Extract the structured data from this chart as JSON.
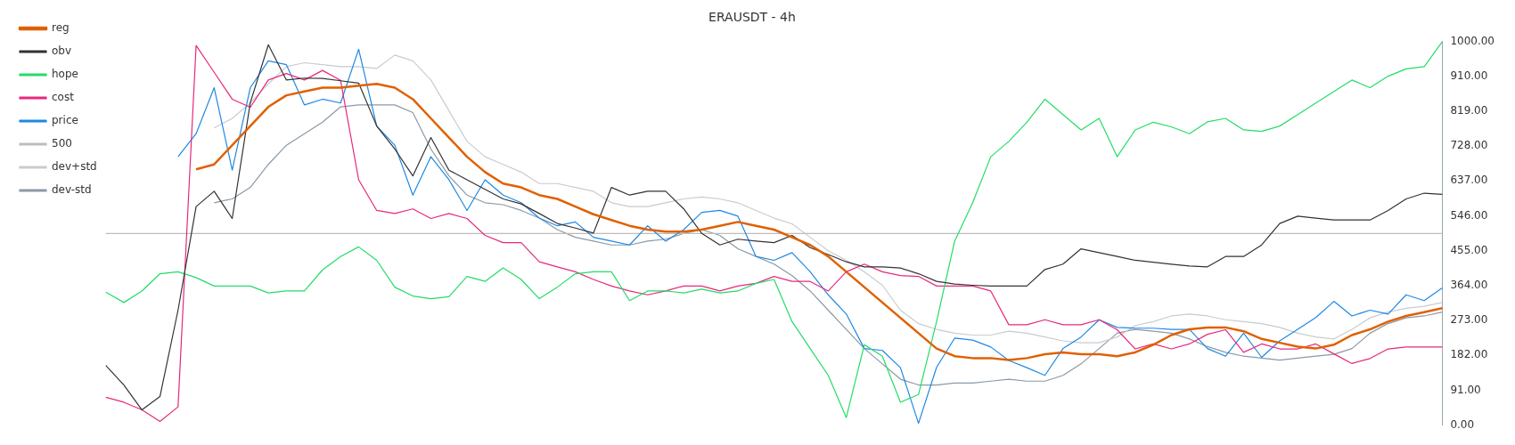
{
  "chart_data": {
    "type": "line",
    "title": "ERAUSDT - 4h",
    "categories": [
      null,
      null,
      null,
      null,
      null,
      null,
      null,
      null,
      null,
      null,
      null,
      null,
      null,
      null,
      null,
      null,
      null,
      null,
      null,
      null,
      null,
      null,
      null,
      null,
      null,
      null,
      null,
      null,
      null,
      null,
      null,
      null,
      null,
      null,
      null,
      null,
      null,
      null,
      null,
      null,
      null,
      null,
      null,
      null,
      null,
      null,
      null,
      null,
      null,
      null,
      null,
      null,
      null,
      null,
      null,
      null,
      null,
      null,
      null,
      null,
      null,
      null,
      null,
      null,
      null,
      null,
      null,
      null,
      null,
      null,
      null,
      null,
      null,
      null,
      null
    ],
    "series": [
      {
        "name": "obv",
        "color": "#333333",
        "values": [
          156,
          105,
          40,
          75,
          300,
          570,
          610,
          539,
          841,
          992,
          900,
          905,
          904,
          898,
          892,
          780,
          720,
          650,
          750,
          665,
          640,
          615,
          590,
          577,
          552,
          526,
          514,
          501,
          620,
          600,
          610,
          610,
          564,
          500,
          470,
          485,
          480,
          476,
          495,
          463,
          445,
          426,
          413,
          413,
          410,
          395,
          375,
          368,
          365,
          363,
          363,
          363,
          406,
          420,
          460,
          450,
          440,
          430,
          425,
          420,
          415,
          413,
          440,
          440,
          470,
          526,
          545,
          540,
          535,
          535,
          535,
          560,
          590,
          605,
          602
        ]
      },
      {
        "name": "hope",
        "color": "#22dd66",
        "values": [
          347,
          320,
          350,
          395,
          400,
          385,
          363,
          363,
          363,
          345,
          350,
          350,
          405,
          440,
          465,
          430,
          360,
          337,
          330,
          335,
          388,
          375,
          410,
          380,
          330,
          360,
          395,
          400,
          400,
          325,
          350,
          350,
          345,
          355,
          345,
          350,
          370,
          380,
          270,
          200,
          130,
          20,
          210,
          180,
          60,
          80,
          270,
          480,
          580,
          700,
          740,
          790,
          850,
          810,
          770,
          800,
          700,
          770,
          790,
          778,
          760,
          791,
          800,
          770,
          766,
          780,
          810,
          840,
          870,
          900,
          880,
          910,
          929,
          935,
          1000
        ]
      },
      {
        "name": "cost",
        "color": "#e8287c",
        "values": [
          73,
          60,
          40,
          10,
          48,
          990,
          920,
          850,
          829,
          900,
          917,
          900,
          925,
          899,
          640,
          560,
          552,
          564,
          539,
          552,
          539,
          495,
          476,
          476,
          426,
          413,
          400,
          380,
          363,
          350,
          340,
          350,
          363,
          363,
          350,
          363,
          370,
          388,
          375,
          375,
          350,
          400,
          420,
          400,
          390,
          388,
          363,
          363,
          363,
          350,
          262,
          262,
          275,
          262,
          262,
          275,
          249,
          199,
          212,
          199,
          212,
          237,
          249,
          190,
          212,
          199,
          199,
          212,
          186,
          161,
          174,
          199,
          204,
          204,
          204
        ]
      },
      {
        "name": "price",
        "color": "#1e88e5",
        "values": [
          null,
          null,
          null,
          null,
          700,
          760,
          880,
          665,
          880,
          950,
          940,
          835,
          850,
          840,
          980,
          780,
          730,
          600,
          700,
          640,
          560,
          640,
          600,
          580,
          540,
          520,
          530,
          490,
          480,
          470,
          520,
          480,
          510,
          555,
          560,
          545,
          440,
          430,
          450,
          400,
          340,
          290,
          200,
          195,
          150,
          5,
          151,
          227,
          222,
          204,
          169,
          150,
          130,
          200,
          230,
          275,
          255,
          253,
          253,
          250,
          250,
          200,
          180,
          240,
          177,
          220,
          250,
          281,
          323,
          285,
          300,
          290,
          340,
          325,
          358
        ]
      },
      {
        "name": "500",
        "color": "#bdbdbd",
        "values": [
          500,
          500,
          500,
          500,
          500,
          500,
          500,
          500,
          500,
          500,
          500,
          500,
          500,
          500,
          500,
          500,
          500,
          500,
          500,
          500,
          500,
          500,
          500,
          500,
          500,
          500,
          500,
          500,
          500,
          500,
          500,
          500,
          500,
          500,
          500,
          500,
          500,
          500,
          500,
          500,
          500,
          500,
          500,
          500,
          500,
          500,
          500,
          500,
          500,
          500,
          500,
          500,
          500,
          500,
          500,
          500,
          500,
          500,
          500,
          500,
          500,
          500,
          500,
          500,
          500,
          500,
          500,
          500,
          500,
          500,
          500,
          500,
          500,
          500,
          500
        ]
      },
      {
        "name": "reg",
        "color": "#e06000",
        "values": [
          null,
          null,
          null,
          null,
          null,
          667,
          680,
          730,
          780,
          830,
          860,
          870,
          880,
          880,
          885,
          890,
          880,
          850,
          800,
          750,
          700,
          660,
          630,
          620,
          600,
          590,
          570,
          550,
          535,
          520,
          510,
          505,
          505,
          510,
          520,
          530,
          520,
          510,
          490,
          470,
          440,
          400,
          360,
          320,
          280,
          240,
          200,
          180,
          175,
          175,
          170,
          175,
          185,
          190,
          185,
          185,
          180,
          190,
          210,
          235,
          250,
          255,
          255,
          245,
          225,
          215,
          205,
          200,
          210,
          235,
          250,
          270,
          285,
          295,
          305
        ]
      },
      {
        "name": "dev+std",
        "color": "#c8ccd0",
        "values": [
          null,
          null,
          null,
          null,
          null,
          null,
          775,
          800,
          840,
          890,
          935,
          945,
          940,
          935,
          935,
          930,
          965,
          950,
          900,
          820,
          740,
          700,
          680,
          660,
          630,
          630,
          620,
          610,
          580,
          570,
          570,
          580,
          590,
          595,
          590,
          580,
          560,
          540,
          525,
          490,
          455,
          430,
          400,
          365,
          300,
          265,
          250,
          240,
          235,
          235,
          245,
          240,
          230,
          220,
          215,
          215,
          230,
          260,
          270,
          285,
          290,
          285,
          275,
          270,
          265,
          255,
          240,
          230,
          225,
          250,
          280,
          295,
          305,
          310,
          320
        ]
      },
      {
        "name": "dev-std",
        "color": "#8c99a6",
        "values": [
          null,
          null,
          null,
          null,
          null,
          null,
          580,
          590,
          620,
          680,
          730,
          760,
          790,
          830,
          835,
          835,
          835,
          815,
          720,
          650,
          600,
          580,
          575,
          560,
          540,
          510,
          490,
          480,
          470,
          470,
          480,
          485,
          500,
          510,
          495,
          460,
          440,
          420,
          390,
          350,
          300,
          250,
          200,
          160,
          120,
          105,
          105,
          110,
          110,
          115,
          120,
          115,
          115,
          130,
          160,
          200,
          240,
          250,
          245,
          240,
          225,
          205,
          190,
          180,
          175,
          170,
          175,
          180,
          185,
          200,
          240,
          265,
          280,
          285,
          295
        ]
      }
    ],
    "ylim": [
      0,
      1000
    ],
    "yticks": [
      {
        "value": 0,
        "label": "0.00"
      },
      {
        "value": 91,
        "label": "91.00"
      },
      {
        "value": 182,
        "label": "182.00"
      },
      {
        "value": 273,
        "label": "273.00"
      },
      {
        "value": 364,
        "label": "364.00"
      },
      {
        "value": 455,
        "label": "455.00"
      },
      {
        "value": 546,
        "label": "546.00"
      },
      {
        "value": 637,
        "label": "637.00"
      },
      {
        "value": 728,
        "label": "728.00"
      },
      {
        "value": 819,
        "label": "819.00"
      },
      {
        "value": 910,
        "label": "910.00"
      },
      {
        "value": 1000,
        "label": "1000.00"
      }
    ],
    "tick_labels": "y",
    "grid": false,
    "legend": "top left",
    "marker": "none",
    "line_style": "solid"
  }
}
